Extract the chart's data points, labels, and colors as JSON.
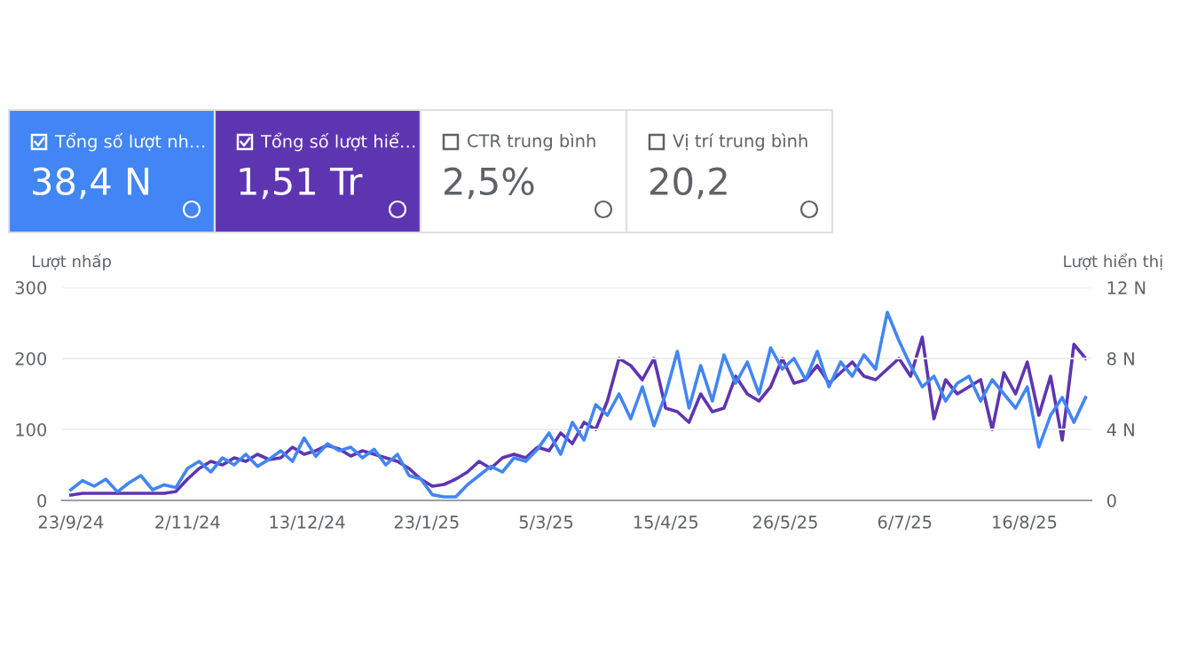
{
  "chart_data": [
    {
      "type": "other",
      "annotations": [
        "Tổng số lượt nh…",
        "38,4 N",
        "Tổng số lượt hiể…",
        "1,51 Tr",
        "CTR trung bình",
        "2,5%",
        "Vị trí trung bình",
        "20,2"
      ]
    },
    {
      "type": "line",
      "ylabel": "Lượt nhấp",
      "y2label": "Lượt hiển thị",
      "grid": "y",
      "marker": "none",
      "line_style": "solid",
      "x": [
        "2024-09-23",
        "2024-09-27",
        "2024-10-01",
        "2024-10-05",
        "2024-10-09",
        "2024-10-13",
        "2024-10-17",
        "2024-10-21",
        "2024-10-25",
        "2024-10-29",
        "2024-11-02",
        "2024-11-06",
        "2024-11-10",
        "2024-11-14",
        "2024-11-18",
        "2024-11-22",
        "2024-11-26",
        "2024-11-30",
        "2024-12-04",
        "2024-12-08",
        "2024-12-12",
        "2024-12-16",
        "2024-12-20",
        "2024-12-24",
        "2024-12-28",
        "2025-01-01",
        "2025-01-05",
        "2025-01-09",
        "2025-01-13",
        "2025-01-17",
        "2025-01-21",
        "2025-01-25",
        "2025-01-29",
        "2025-02-02",
        "2025-02-06",
        "2025-02-10",
        "2025-02-14",
        "2025-02-18",
        "2025-02-22",
        "2025-02-26",
        "2025-03-02",
        "2025-03-06",
        "2025-03-10",
        "2025-03-14",
        "2025-03-18",
        "2025-03-22",
        "2025-03-26",
        "2025-03-30",
        "2025-04-03",
        "2025-04-07",
        "2025-04-11",
        "2025-04-15",
        "2025-04-19",
        "2025-04-23",
        "2025-04-27",
        "2025-05-01",
        "2025-05-05",
        "2025-05-09",
        "2025-05-13",
        "2025-05-17",
        "2025-05-21",
        "2025-05-25",
        "2025-05-29",
        "2025-06-02",
        "2025-06-06",
        "2025-06-10",
        "2025-06-14",
        "2025-06-18",
        "2025-06-22",
        "2025-06-26",
        "2025-06-30",
        "2025-07-04",
        "2025-07-08",
        "2025-07-12",
        "2025-07-16",
        "2025-07-20",
        "2025-07-24",
        "2025-07-28",
        "2025-08-01",
        "2025-08-05",
        "2025-08-09",
        "2025-08-13",
        "2025-08-17",
        "2025-08-21",
        "2025-08-25",
        "2025-08-29",
        "2025-09-02",
        "2025-09-06"
      ],
      "series": [
        {
          "color": "#4285f4",
          "values": [
            15,
            28,
            20,
            30,
            12,
            25,
            35,
            15,
            22,
            18,
            45,
            55,
            40,
            60,
            50,
            65,
            48,
            58,
            70,
            55,
            88,
            62,
            80,
            70,
            75,
            60,
            72,
            50,
            65,
            35,
            30,
            8,
            5,
            5,
            22,
            35,
            48,
            40,
            60,
            55,
            72,
            95,
            65,
            110,
            85,
            135,
            120,
            150,
            115,
            160,
            105,
            150,
            210,
            130,
            190,
            140,
            205,
            165,
            195,
            150,
            215,
            185,
            200,
            170,
            210,
            160,
            195,
            175,
            205,
            185,
            265,
            225,
            190,
            160,
            175,
            140,
            165,
            175,
            140,
            170,
            150,
            130,
            160,
            75,
            120,
            145,
            110,
            145
          ]
        },
        {
          "color": "#5e35b1",
          "axis": "y2",
          "values": [
            0.3,
            0.4,
            0.4,
            0.4,
            0.4,
            0.4,
            0.4,
            0.4,
            0.4,
            0.5,
            1.2,
            1.8,
            2.2,
            2.0,
            2.4,
            2.2,
            2.6,
            2.3,
            2.4,
            3.0,
            2.6,
            2.8,
            3.1,
            2.9,
            2.5,
            2.8,
            2.6,
            2.4,
            2.2,
            1.8,
            1.2,
            0.8,
            0.9,
            1.2,
            1.6,
            2.2,
            1.8,
            2.4,
            2.6,
            2.4,
            3.0,
            2.8,
            3.8,
            3.2,
            4.4,
            4.0,
            5.6,
            8.0,
            7.6,
            6.8,
            8.0,
            5.2,
            5.0,
            4.4,
            6.0,
            5.0,
            5.2,
            7.0,
            6.0,
            5.6,
            6.4,
            8.0,
            6.6,
            6.8,
            7.6,
            6.6,
            7.2,
            7.8,
            7.0,
            6.8,
            7.4,
            8.0,
            7.0,
            9.2,
            4.6,
            6.8,
            6.0,
            6.4,
            6.8,
            4.0,
            7.2,
            6.0,
            7.8,
            4.8,
            7.0,
            3.4,
            8.8,
            8.0
          ]
        }
      ],
      "xlim": [
        "2024-09-20",
        "2025-09-08"
      ],
      "xticks": [
        {
          "value": "2024-09-23",
          "label": "23/9/24"
        },
        {
          "value": "2024-11-02",
          "label": "2/11/24"
        },
        {
          "value": "2024-12-13",
          "label": "13/12/24"
        },
        {
          "value": "2025-01-23",
          "label": "23/1/25"
        },
        {
          "value": "2025-03-05",
          "label": "5/3/25"
        },
        {
          "value": "2025-04-15",
          "label": "15/4/25"
        },
        {
          "value": "2025-05-26",
          "label": "26/5/25"
        },
        {
          "value": "2025-07-06",
          "label": "6/7/25"
        },
        {
          "value": "2025-08-16",
          "label": "16/8/25"
        }
      ],
      "ylim": [
        0,
        300
      ],
      "yticks": [
        0,
        100,
        200,
        300
      ],
      "y2lim": [
        0,
        12
      ],
      "y2ticks": [
        {
          "value": 0,
          "label": "0"
        },
        {
          "value": 4,
          "label": "4 N"
        },
        {
          "value": 8,
          "label": "8 N"
        },
        {
          "value": 12,
          "label": "12 N"
        }
      ]
    }
  ]
}
